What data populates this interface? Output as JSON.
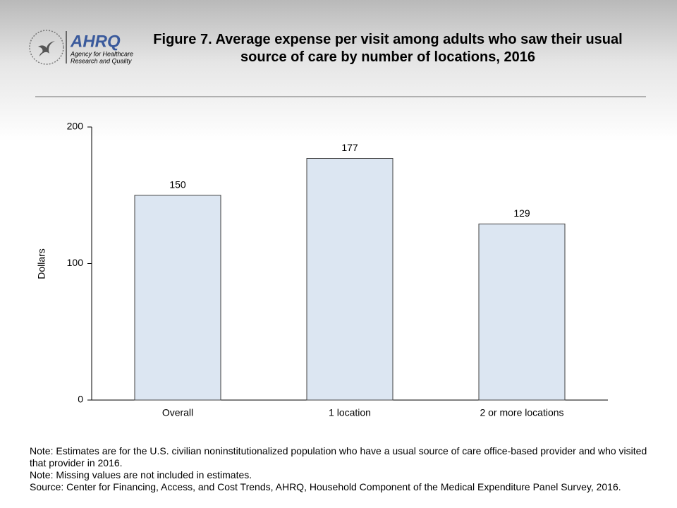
{
  "logo": {
    "name": "AHRQ",
    "tagline": [
      "Agency for Healthcare",
      "Research and Quality"
    ]
  },
  "chart_data": {
    "type": "bar",
    "title": "Figure 7. Average expense per visit among adults who saw their usual source of care by number of locations, 2016",
    "y_label": "Dollars",
    "categories": [
      "Overall",
      "1 location",
      "2 or more locations"
    ],
    "values": [
      150,
      177,
      129
    ],
    "color": "#dce6f2",
    "ylim": [
      0,
      200
    ],
    "yticks": [
      0,
      100,
      200
    ],
    "grid": false
  },
  "notes": [
    "Note: Estimates are for the U.S. civilian noninstitutionalized population who have a usual source of care office-based provider and who visited that provider in 2016.",
    "Note: Missing values are not included in estimates.",
    "Source: Center for Financing, Access, and Cost Trends, AHRQ, Household Component of the Medical Expenditure Panel Survey, 2016."
  ]
}
